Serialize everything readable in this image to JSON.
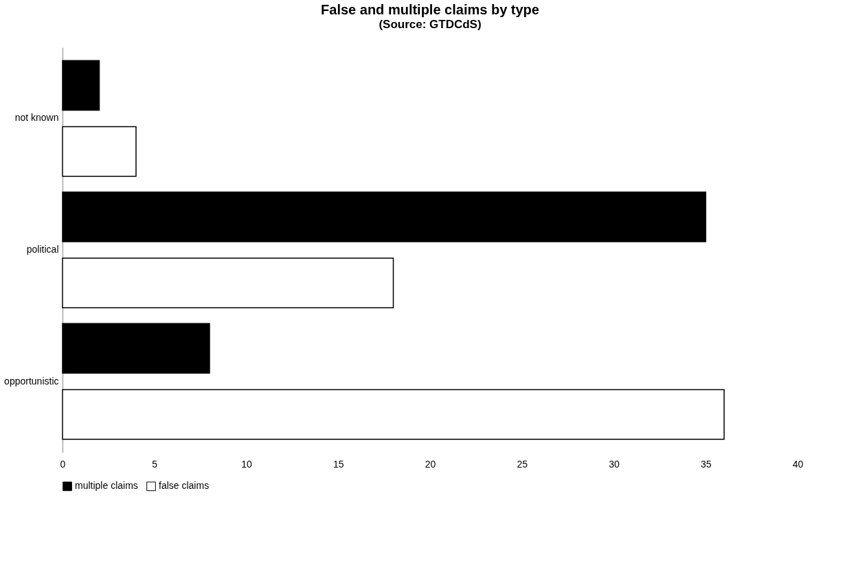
{
  "chart_data": {
    "type": "bar",
    "orientation": "horizontal",
    "title": "False  and multiple claims by type",
    "subtitle": "(Source: GTDCdS)",
    "categories": [
      "not known",
      "political",
      "opportunistic"
    ],
    "series": [
      {
        "name": "multiple claims",
        "color": "#000000",
        "values": [
          2,
          35,
          8
        ]
      },
      {
        "name": "false claims",
        "color": "#ffffff",
        "values": [
          4,
          18,
          36
        ]
      }
    ],
    "xlim": [
      0,
      40
    ],
    "xticks": [
      0,
      5,
      10,
      15,
      20,
      25,
      30,
      35,
      40
    ],
    "grid": false,
    "legend": "bottom"
  }
}
